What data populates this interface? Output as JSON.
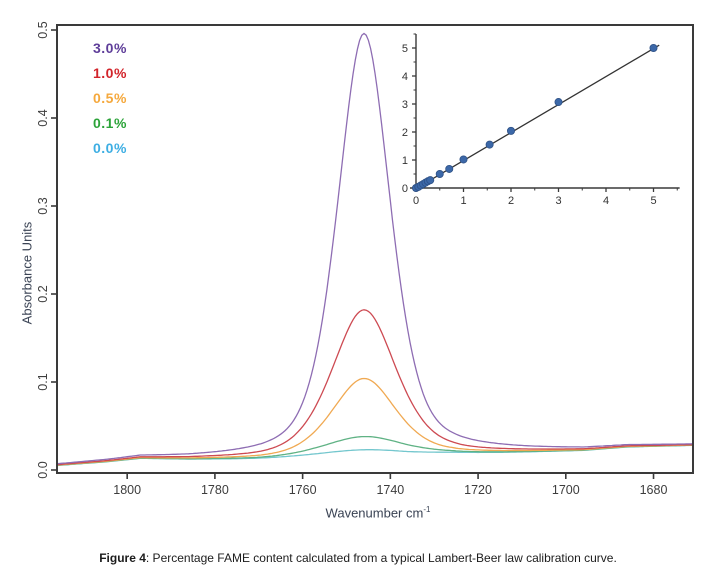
{
  "figure": {
    "caption_label": "Figure 4",
    "caption_text": ": Percentage FAME content calculated from a typical Lambert-Beer law calibration curve."
  },
  "main_chart": {
    "type": "line",
    "xlabel": "Wavenumber cm",
    "xlabel_sup": "-1",
    "ylabel": "Absorbance Units",
    "x_ticks": [
      1800,
      1780,
      1760,
      1740,
      1720,
      1700,
      1680
    ],
    "y_ticks": [
      "0.0",
      "0.1",
      "0.2",
      "0.3",
      "0.4",
      "0.5"
    ],
    "xlim": [
      1816,
      1671
    ],
    "ylim": [
      0,
      0.51
    ],
    "x_axis_reversed": true,
    "grid": false,
    "axis_color": "#3a3a3a",
    "peak_center_wavenumber": 1746,
    "baseline_points": [
      [
        1670,
        0.028
      ],
      [
        1686,
        0.026
      ],
      [
        1696,
        0.022
      ],
      [
        1710,
        0.02
      ],
      [
        1726,
        0.018
      ],
      [
        1736,
        0.015
      ],
      [
        1756,
        0.013
      ],
      [
        1770,
        0.012
      ],
      [
        1786,
        0.012
      ],
      [
        1797,
        0.013
      ],
      [
        1805,
        0.009
      ],
      [
        1816,
        0.005
      ]
    ],
    "series": [
      {
        "label": "3.0%",
        "legend_color": "#5E3D99",
        "line_color": "#8E6DB3",
        "peak_absorbance": 0.497,
        "amplitude": 0.482,
        "half_width": 7
      },
      {
        "label": "1.0%",
        "legend_color": "#D2232A",
        "line_color": "#CD4A52",
        "peak_absorbance": 0.183,
        "amplitude": 0.168,
        "half_width": 8.5
      },
      {
        "label": "0.5%",
        "legend_color": "#F5A83C",
        "line_color": "#F0A952",
        "peak_absorbance": 0.105,
        "amplitude": 0.09,
        "half_width": 8.5
      },
      {
        "label": "0.1%",
        "legend_color": "#2CA339",
        "line_color": "#5FB284",
        "peak_absorbance": 0.038,
        "amplitude": 0.024,
        "half_width": 11
      },
      {
        "label": "0.0%",
        "legend_color": "#3DAEE3",
        "line_color": "#74C7CE",
        "peak_absorbance": 0.023,
        "amplitude": 0.009,
        "half_width": 13
      }
    ]
  },
  "inset_chart": {
    "type": "scatter",
    "x_ticks": [
      0,
      1,
      2,
      3,
      4,
      5
    ],
    "y_ticks": [
      0,
      1,
      2,
      3,
      4,
      5
    ],
    "xlim": [
      0,
      5.6
    ],
    "ylim": [
      0,
      5.6
    ],
    "points": [
      [
        0,
        0
      ],
      [
        0.05,
        0.04
      ],
      [
        0.1,
        0.09
      ],
      [
        0.15,
        0.14
      ],
      [
        0.2,
        0.19
      ],
      [
        0.25,
        0.24
      ],
      [
        0.3,
        0.28
      ],
      [
        0.5,
        0.5
      ],
      [
        0.7,
        0.68
      ],
      [
        1.0,
        1.02
      ],
      [
        1.55,
        1.55
      ],
      [
        2.0,
        2.04
      ],
      [
        3.0,
        3.07
      ],
      [
        5.0,
        5.0
      ]
    ],
    "fit_line": {
      "x1": 0,
      "y1": -0.02,
      "x2": 5.12,
      "y2": 5.1
    },
    "point_color": "#3C68A8",
    "point_edge_color": "#2E5186",
    "line_color": "#333333",
    "axis_color": "#3a3a3a"
  }
}
